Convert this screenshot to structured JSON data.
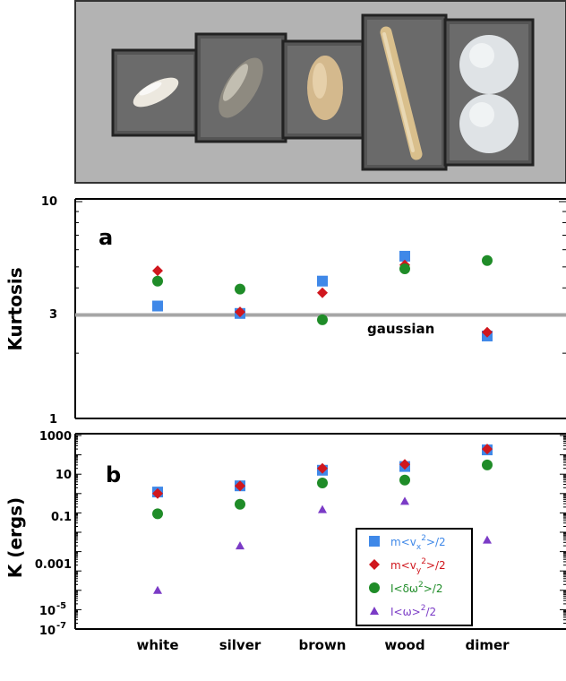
{
  "photo": {
    "objects": [
      "white",
      "silver",
      "brown",
      "wood",
      "dimer"
    ]
  },
  "categories": [
    "white",
    "silver",
    "brown",
    "wood",
    "dimer"
  ],
  "colors": {
    "vx": "#3f88e8",
    "vy": "#d0171e",
    "omega_fluct": "#1f8c28",
    "omega_mean": "#7b3bc6",
    "gaussian_line": "#a6a6a6"
  },
  "chart_data": [
    {
      "type": "scatter",
      "panel_label": "a",
      "ylabel": "Kurtosis",
      "yscale": "log",
      "ylim": [
        1,
        10
      ],
      "yticks": [
        "1",
        "3",
        "10"
      ],
      "categories": [
        "white",
        "silver",
        "brown",
        "wood",
        "dimer"
      ],
      "reference_line": {
        "y": 3,
        "label": "gaussian"
      },
      "series": [
        {
          "key": "vx",
          "marker": "square",
          "values": [
            3.3,
            3.05,
            4.3,
            5.6,
            2.4
          ]
        },
        {
          "key": "vy",
          "marker": "diamond",
          "values": [
            4.8,
            3.1,
            3.8,
            5.1,
            2.5
          ]
        },
        {
          "key": "omega_fluct",
          "marker": "circle",
          "values": [
            4.3,
            3.95,
            2.85,
            4.9,
            5.35
          ]
        },
        {
          "key": "omega_mean",
          "marker": "triangle",
          "values": []
        }
      ]
    },
    {
      "type": "scatter",
      "panel_label": "b",
      "ylabel": "K (ergs)",
      "yscale": "log",
      "ylim": [
        1e-07,
        1000
      ],
      "yticks": [
        "10",
        "0.1",
        "0.001"
      ],
      "yticks_power": [
        {
          "base": "10",
          "exp": "-5",
          "value": 1e-05
        },
        {
          "base": "10",
          "exp": "-7",
          "value": 1e-07
        }
      ],
      "ytick_1000": "1000",
      "categories": [
        "white",
        "silver",
        "brown",
        "wood",
        "dimer"
      ],
      "series": [
        {
          "key": "vx",
          "marker": "square",
          "legend": [
            "m<v",
            "x",
            "2",
            ">/2"
          ],
          "values": [
            1.2,
            2.5,
            16,
            25,
            180
          ]
        },
        {
          "key": "vy",
          "marker": "diamond",
          "legend": [
            "m<v",
            "y",
            "2",
            ">/2"
          ],
          "values": [
            1.0,
            2.5,
            20,
            32,
            200
          ]
        },
        {
          "key": "omega_fluct",
          "marker": "circle",
          "legend": [
            "I<δω",
            "",
            "2",
            ">/2"
          ],
          "values": [
            0.09,
            0.28,
            3.5,
            5,
            30
          ]
        },
        {
          "key": "omega_mean",
          "marker": "triangle",
          "legend": [
            "I<ω>",
            "",
            "2",
            "/2"
          ],
          "values": [
            1e-05,
            0.002,
            0.15,
            0.4,
            0.004
          ]
        }
      ]
    }
  ]
}
